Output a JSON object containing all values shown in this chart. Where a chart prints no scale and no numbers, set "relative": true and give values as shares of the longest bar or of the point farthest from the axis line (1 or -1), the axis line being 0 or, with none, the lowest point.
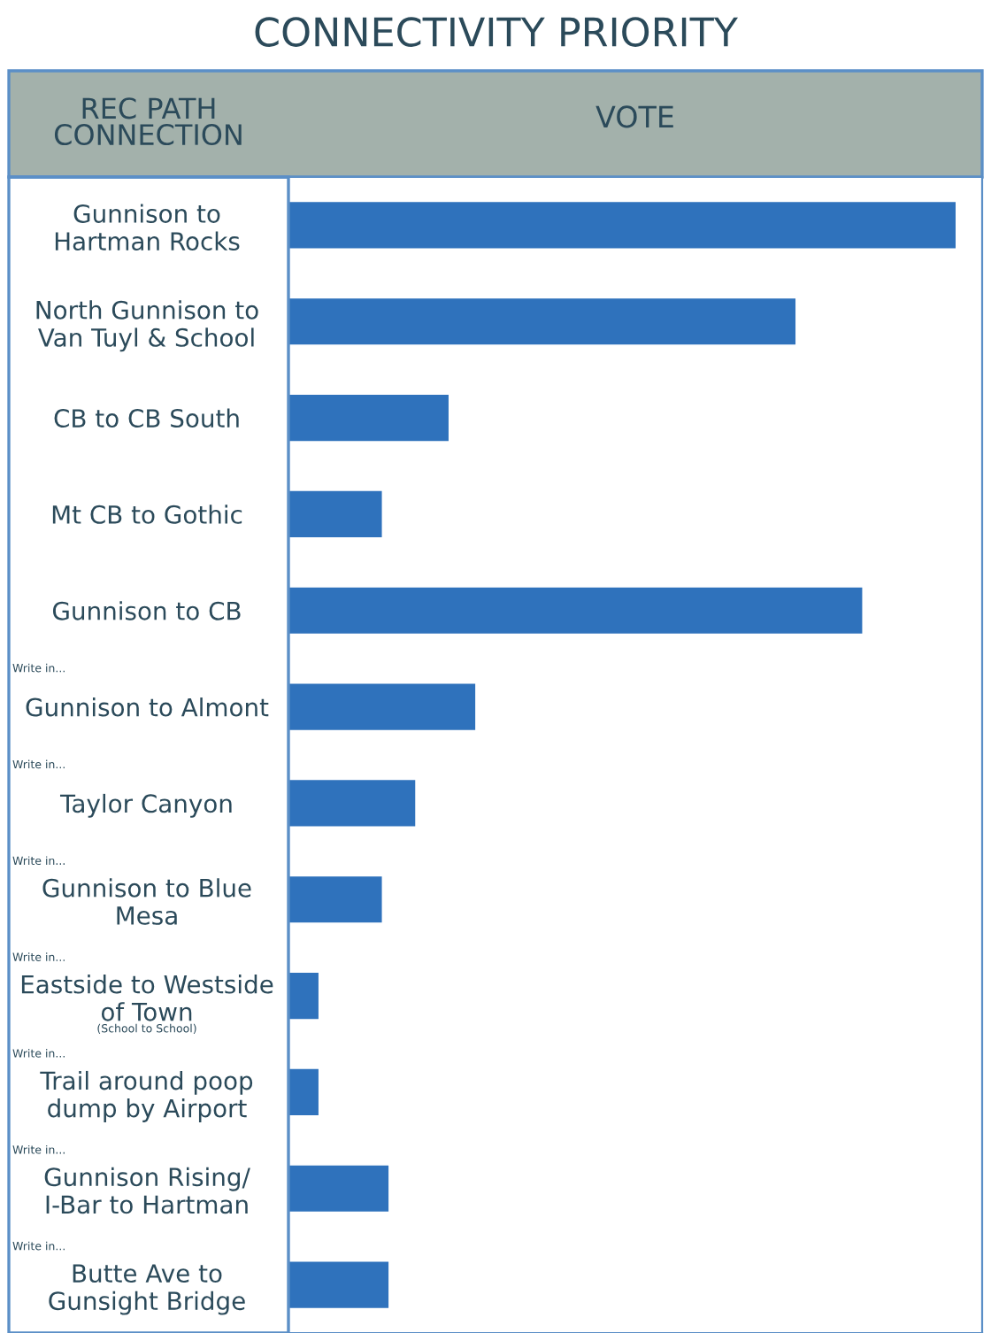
{
  "chart_data": {
    "type": "bar",
    "orientation": "horizontal",
    "relative": true,
    "title": "CONNECTIVITY PRIORITY",
    "xlabel": "VOTE",
    "ylabel": "REC PATH\nCONNECTION",
    "categories": [
      "Gunnison to\nHartman Rocks",
      "North Gunnison to\nVan Tuyl & School",
      "CB to CB South",
      "Mt CB to Gothic",
      "Gunnison to CB",
      "Gunnison to Almont",
      "Taylor Canyon",
      "Gunnison to Blue\nMesa",
      "Eastside to Westside\nof Town",
      "Trail around poop\ndump by Airport",
      "Gunnison Rising/\nI-Bar to Hartman",
      "Butte Ave to\nGunsight Bridge"
    ],
    "values": [
      1,
      0.76,
      0.24,
      0.14,
      0.86,
      0.28,
      0.19,
      0.14,
      0.045,
      0.045,
      0.15,
      0.15
    ],
    "color": "#2f72bc",
    "annotations": [
      "Write in...",
      "Write in...",
      "Write in...",
      "Write in...",
      "(School to School)",
      "Write in...",
      "Write in...",
      "Write in..."
    ]
  }
}
